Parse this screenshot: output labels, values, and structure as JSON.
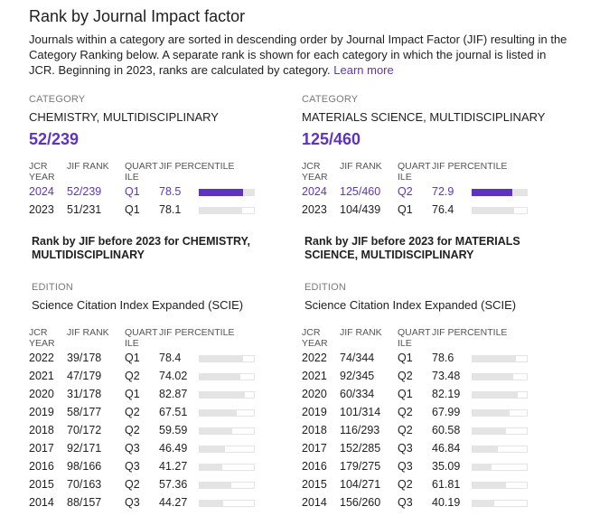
{
  "header": {
    "title": "Rank by Journal Impact factor",
    "description": "Journals within a category are sorted in descending order by Journal Impact Factor (JIF) resulting in the Category Ranking below. A separate rank is shown for each category in which the journal is listed in JCR. Beginning in 2023, ranks are calculated by category.",
    "learn_more": "Learn more"
  },
  "accent_color": "#5e33bf",
  "columns_header": {
    "year": "JCR YEAR",
    "rank": "JIF RANK",
    "quartile": "QUART ILE",
    "percentile": "JIF PERCENTILE"
  },
  "left": {
    "category_label": "CATEGORY",
    "category_name": "CHEMISTRY, MULTIDISCIPLINARY",
    "current_rank": "52/239",
    "recent_rows": [
      {
        "year": "2024",
        "rank": "52/239",
        "quartile": "Q1",
        "percentile": "78.5",
        "value": 78.5,
        "highlight": true
      },
      {
        "year": "2023",
        "rank": "51/231",
        "quartile": "Q1",
        "percentile": "78.1",
        "value": 78.1,
        "highlight": false
      }
    ],
    "prior_title": "Rank by JIF before 2023 for CHEMISTRY, MULTIDISCIPLINARY",
    "edition_label": "EDITION",
    "edition_name": "Science Citation Index Expanded (SCIE)",
    "prior_rows": [
      {
        "year": "2022",
        "rank": "39/178",
        "quartile": "Q1",
        "percentile": "78.4",
        "value": 78.4
      },
      {
        "year": "2021",
        "rank": "47/179",
        "quartile": "Q2",
        "percentile": "74.02",
        "value": 74.02
      },
      {
        "year": "2020",
        "rank": "31/178",
        "quartile": "Q1",
        "percentile": "82.87",
        "value": 82.87
      },
      {
        "year": "2019",
        "rank": "58/177",
        "quartile": "Q2",
        "percentile": "67.51",
        "value": 67.51
      },
      {
        "year": "2018",
        "rank": "70/172",
        "quartile": "Q2",
        "percentile": "59.59",
        "value": 59.59
      },
      {
        "year": "2017",
        "rank": "92/171",
        "quartile": "Q3",
        "percentile": "46.49",
        "value": 46.49
      },
      {
        "year": "2016",
        "rank": "98/166",
        "quartile": "Q3",
        "percentile": "41.27",
        "value": 41.27
      },
      {
        "year": "2015",
        "rank": "70/163",
        "quartile": "Q2",
        "percentile": "57.36",
        "value": 57.36
      },
      {
        "year": "2014",
        "rank": "88/157",
        "quartile": "Q3",
        "percentile": "44.27",
        "value": 44.27
      }
    ]
  },
  "right": {
    "category_label": "CATEGORY",
    "category_name": "MATERIALS SCIENCE, MULTIDISCIPLINARY",
    "current_rank": "125/460",
    "recent_rows": [
      {
        "year": "2024",
        "rank": "125/460",
        "quartile": "Q2",
        "percentile": "72.9",
        "value": 72.9,
        "highlight": true
      },
      {
        "year": "2023",
        "rank": "104/439",
        "quartile": "Q1",
        "percentile": "76.4",
        "value": 76.4,
        "highlight": false
      }
    ],
    "prior_title": "Rank by JIF before 2023 for MATERIALS SCIENCE, MULTIDISCIPLINARY",
    "edition_label": "EDITION",
    "edition_name": "Science Citation Index Expanded (SCIE)",
    "prior_rows": [
      {
        "year": "2022",
        "rank": "74/344",
        "quartile": "Q1",
        "percentile": "78.6",
        "value": 78.6
      },
      {
        "year": "2021",
        "rank": "92/345",
        "quartile": "Q2",
        "percentile": "73.48",
        "value": 73.48
      },
      {
        "year": "2020",
        "rank": "60/334",
        "quartile": "Q1",
        "percentile": "82.19",
        "value": 82.19
      },
      {
        "year": "2019",
        "rank": "101/314",
        "quartile": "Q2",
        "percentile": "67.99",
        "value": 67.99
      },
      {
        "year": "2018",
        "rank": "116/293",
        "quartile": "Q2",
        "percentile": "60.58",
        "value": 60.58
      },
      {
        "year": "2017",
        "rank": "152/285",
        "quartile": "Q3",
        "percentile": "46.84",
        "value": 46.84
      },
      {
        "year": "2016",
        "rank": "179/275",
        "quartile": "Q3",
        "percentile": "35.09",
        "value": 35.09
      },
      {
        "year": "2015",
        "rank": "104/271",
        "quartile": "Q2",
        "percentile": "61.81",
        "value": 61.81
      },
      {
        "year": "2014",
        "rank": "156/260",
        "quartile": "Q3",
        "percentile": "40.19",
        "value": 40.19
      }
    ]
  }
}
